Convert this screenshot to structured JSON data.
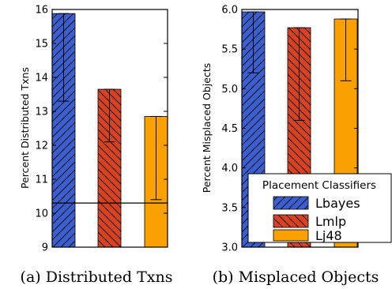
{
  "chart_data": [
    {
      "type": "bar",
      "categories": [
        "Lbayes",
        "Lmlp",
        "Lj48"
      ],
      "values": [
        15.88,
        13.65,
        12.85
      ],
      "error_low": [
        13.3,
        12.1,
        10.4
      ],
      "error_high": [
        15.88,
        13.65,
        12.85
      ],
      "colors": [
        "#3a60cf",
        "#d84221",
        "#f9a003"
      ],
      "hatches": [
        "diagonal",
        "backdiagonal",
        "none"
      ],
      "ylabel": "Percent Distributed Txns",
      "ylim": [
        9,
        16
      ],
      "yticks": [
        "9",
        "10",
        "11",
        "12",
        "13",
        "14",
        "15",
        "16"
      ],
      "reference_line": 10.3,
      "caption": "(a) Distributed Txns"
    },
    {
      "type": "bar",
      "categories": [
        "Lbayes",
        "Lmlp",
        "Lj48"
      ],
      "values": [
        5.97,
        5.77,
        5.88
      ],
      "error_low": [
        5.2,
        4.6,
        5.1
      ],
      "error_high": [
        5.97,
        5.77,
        5.88
      ],
      "colors": [
        "#3a60cf",
        "#d84221",
        "#f9a003"
      ],
      "hatches": [
        "diagonal",
        "backdiagonal",
        "none"
      ],
      "ylabel": "Percent Misplaced Objects",
      "ylim": [
        3.0,
        6.0
      ],
      "yticks": [
        "3.0",
        "3.5",
        "4.0",
        "4.5",
        "5.0",
        "5.5",
        "6.0"
      ],
      "caption": "(b) Misplaced Objects",
      "legend": {
        "title": "Placement Classifiers",
        "location": "lower-right",
        "items": [
          "Lbayes",
          "Lmlp",
          "Lj48"
        ]
      }
    }
  ]
}
